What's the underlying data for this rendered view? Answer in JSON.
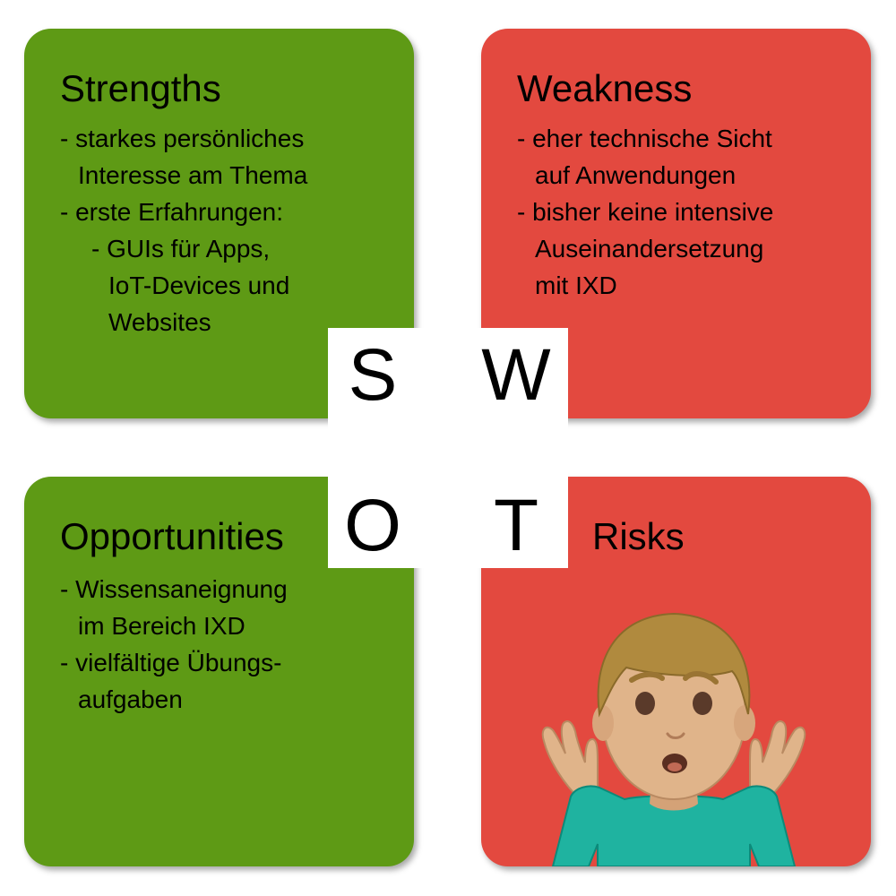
{
  "strengths": {
    "title": "Strengths",
    "items": [
      "- starkes persönliches",
      "Interesse am Thema",
      "- erste Erfahrungen:",
      "- GUIs für Apps,",
      "IoT-Devices und",
      "Websites"
    ],
    "color": "#5e9a15"
  },
  "weakness": {
    "title": "Weakness",
    "items": [
      "- eher technische Sicht",
      "auf Anwendungen",
      "- bisher keine intensive",
      "Auseinandersetzung",
      "mit IXD"
    ],
    "color": "#e3493f"
  },
  "opportunities": {
    "title": "Opportunities",
    "items": [
      "- Wissensaneignung",
      "im Bereich IXD",
      "- vielfältige Übungs-",
      "aufgaben"
    ],
    "color": "#5e9a15"
  },
  "risks": {
    "title": "Risks",
    "icon": "person-shrugging-icon",
    "color": "#e3493f"
  },
  "swot": {
    "s": "S",
    "w": "W",
    "o": "O",
    "t": "T"
  }
}
